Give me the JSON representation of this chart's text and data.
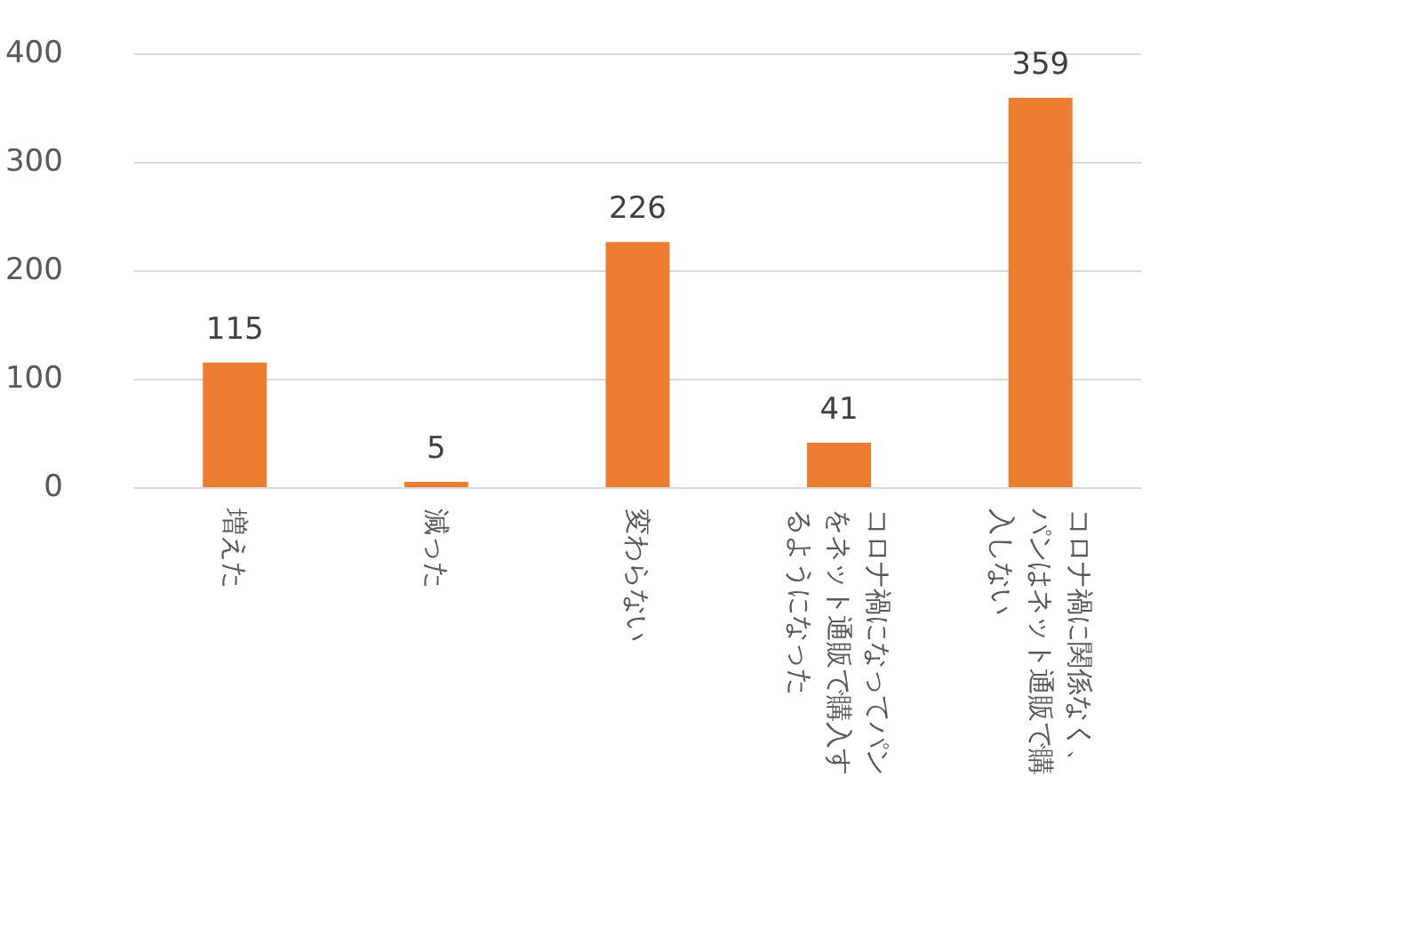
{
  "chart_data": {
    "type": "bar",
    "categories": [
      "増えた",
      "減った",
      "変わらない",
      "コロナ禍になってパンをネット通販で購入するようになった",
      "コロナ禍に関係なく、パンはネット通販で購入しない"
    ],
    "values": [
      115,
      5,
      226,
      41,
      359
    ],
    "color": "#ed7d31",
    "ylim": [
      0,
      400
    ],
    "yticks": [
      0,
      100,
      200,
      300,
      400
    ],
    "grid": "y",
    "data_labels": true
  }
}
